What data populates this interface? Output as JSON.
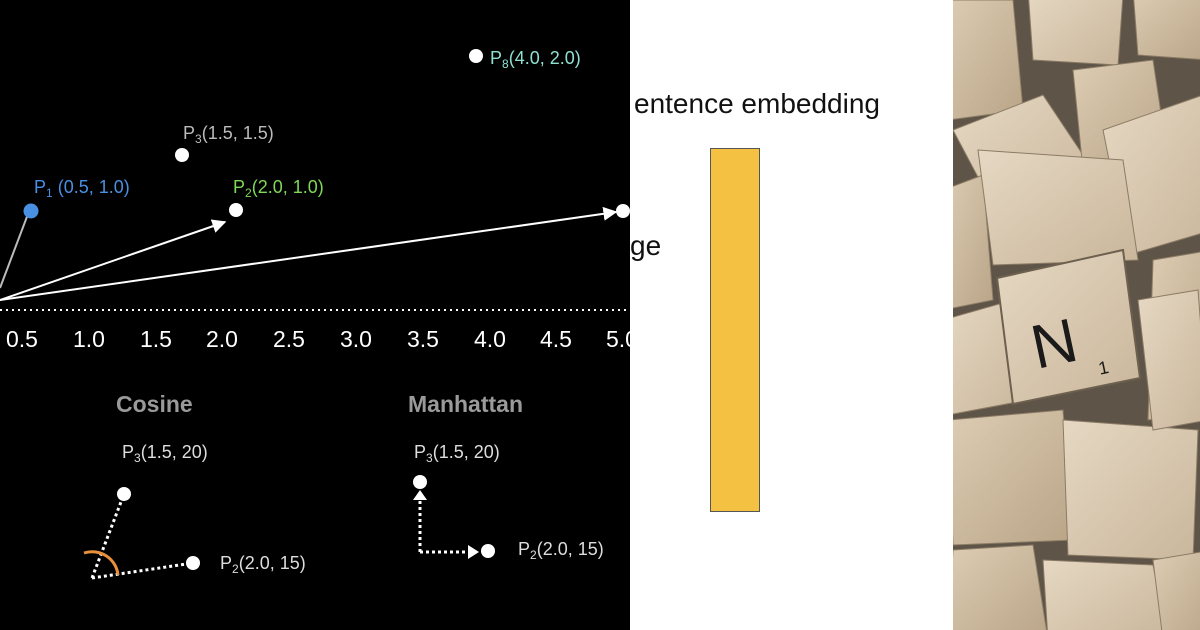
{
  "left_panel": {
    "points": [
      {
        "id": "p8",
        "sub": "8",
        "coords": "(4.0, 2.0)",
        "color": "#8fe0d0"
      },
      {
        "id": "p3",
        "sub": "3",
        "coords": "(1.5, 1.5)",
        "color": "#bbbbbb"
      },
      {
        "id": "p1",
        "sub": "1",
        "coords": " (0.5, 1.0)",
        "color": "#4a90e2"
      },
      {
        "id": "p2",
        "sub": "2",
        "coords": "(2.0, 1.0)",
        "color": "#7ed957"
      }
    ],
    "x_ticks": [
      "0.5",
      "1.0",
      "1.5",
      "2.0",
      "2.5",
      "3.0",
      "3.5",
      "4.0",
      "4.5",
      "5.0"
    ],
    "cosine": {
      "heading": "Cosine",
      "top_label": {
        "sub": "3",
        "coords": "(1.5, 20)"
      },
      "bottom_label": {
        "sub": "2",
        "coords": "(2.0, 15)"
      }
    },
    "manhattan": {
      "heading": "Manhattan",
      "top_label": {
        "sub": "3",
        "coords": "(1.5, 20)"
      },
      "bottom_label": {
        "sub": "2",
        "coords": "(2.0, 15)"
      }
    },
    "colors": {
      "accent_orange": "#e8913a"
    }
  },
  "middle_panel": {
    "title": "entence embedding",
    "side_text": "ge",
    "bar_color": "#f5c142"
  },
  "right_panel": {
    "tile_letter": "N",
    "tile_value": "1"
  }
}
